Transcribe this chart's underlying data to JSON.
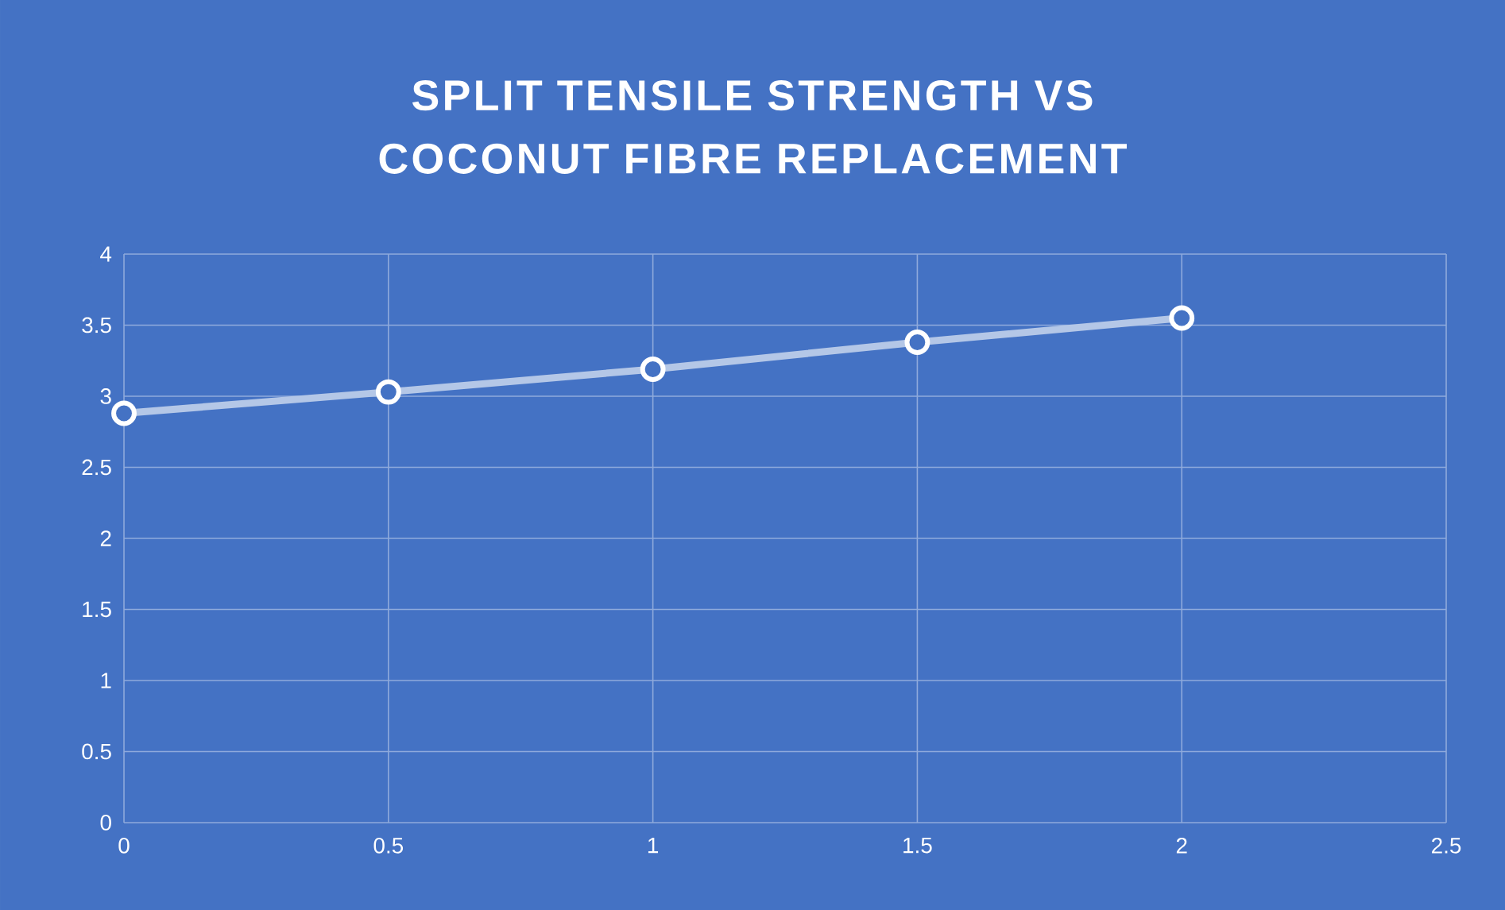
{
  "chart_data": {
    "type": "line",
    "title": "SPLIT TENSILE STRENGTH VS COCONUT FIBRE REPLACEMENT",
    "x": [
      0,
      0.5,
      1,
      1.5,
      2
    ],
    "series": [
      {
        "color": "#b4c7e7",
        "values": [
          2.88,
          3.03,
          3.19,
          3.38,
          3.55
        ]
      }
    ],
    "xlim": [
      0,
      2.5
    ],
    "xticks": [
      0,
      0.5,
      1,
      1.5,
      2,
      2.5
    ],
    "ylim": [
      0,
      4
    ],
    "yticks": [
      0,
      0.5,
      1,
      1.5,
      2,
      2.5,
      3,
      3.5,
      4
    ],
    "grid": true,
    "marker": "circle",
    "line_style": "solid"
  }
}
